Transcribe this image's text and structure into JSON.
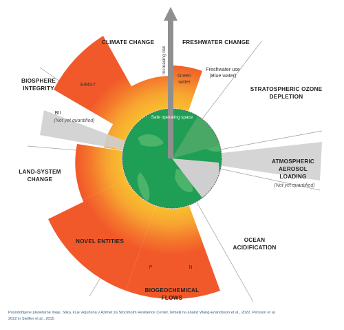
{
  "diagram": {
    "labels": {
      "climate_change": "CLIMATE CHANGE",
      "freshwater_change": "FRESHWATER CHANGE",
      "stratospheric_1": "STRATOSPHERIC OZONE",
      "stratospheric_2": "DEPLETION",
      "atmospheric_1": "ATMOSPHERIC",
      "atmospheric_2": "AEROSOL",
      "atmospheric_3": "LOADING",
      "atmospheric_note": "(Not yet quantified)",
      "ocean_1": "OCEAN",
      "ocean_2": "ACIDIFICATION",
      "biogeochemical_1": "BIOGEOCHEMICAL",
      "biogeochemical_2": "FLOWS",
      "novel_entities": "NOVEL ENTITIES",
      "land_system_1": "LAND-SYSTEM",
      "land_system_2": "CHANGE",
      "biosphere_1": "BIOSPHERE",
      "biosphere_2": "INTEGRITY",
      "emsy": "E/MSY",
      "bii": "BII",
      "bii_note": "(Not yet quantified)",
      "green_water_1": "Green",
      "green_water_2": "water",
      "freshwater_use_1": "Freshwater use",
      "freshwater_use_2": "(Blue water)",
      "p": "P",
      "n": "N",
      "increasing_risk": "Increasing risk",
      "safe_space": "Safe operating space"
    },
    "colors": {
      "green": "#1f9e55",
      "orange_outer": "#f46a2a",
      "orange_inner": "#f7b52c",
      "grey": "#c9c9c9",
      "arrow": "#888888"
    }
  },
  "caption": {
    "line1": "Posodobljene planetarne meje. Slika, ki je vključena v Azimet za Stockholm Resilience Center, temelji na analizi Wang-Erlandsson et al., 2022, Persson et al.",
    "line2": "2022 in Steffen et al., 2015"
  }
}
